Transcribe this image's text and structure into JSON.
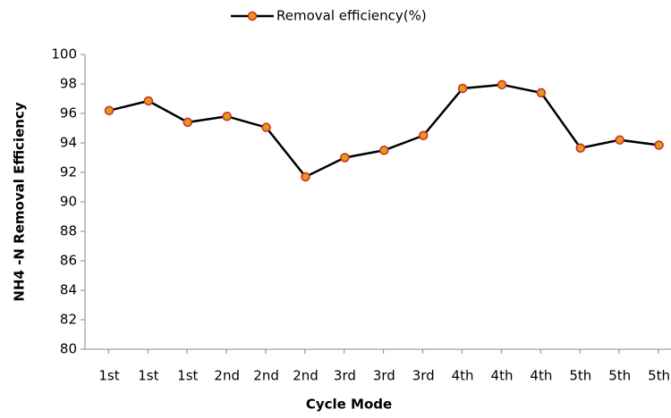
{
  "chart_data": {
    "type": "line",
    "xlabel": "Cycle Mode",
    "ylabel": "NH4 -N Removal Efficiency",
    "categories": [
      "1st",
      "1st",
      "1st",
      "2nd",
      "2nd",
      "2nd",
      "3rd",
      "3rd",
      "3rd",
      "4th",
      "4th",
      "4th",
      "5th",
      "5th",
      "5th"
    ],
    "series": [
      {
        "name": "Removal efficiency(%)",
        "color": "#000000",
        "marker_fill": "#d4a020",
        "marker_edge": "#e02020",
        "values": [
          96.2,
          96.85,
          95.4,
          95.8,
          95.05,
          91.7,
          93.0,
          93.5,
          94.5,
          97.7,
          97.95,
          97.4,
          93.65,
          94.2,
          93.85
        ]
      }
    ],
    "ylim": [
      80,
      100
    ],
    "yticks": [
      80,
      82,
      84,
      86,
      88,
      90,
      92,
      94,
      96,
      98,
      100
    ],
    "grid": false,
    "legend": "top"
  }
}
